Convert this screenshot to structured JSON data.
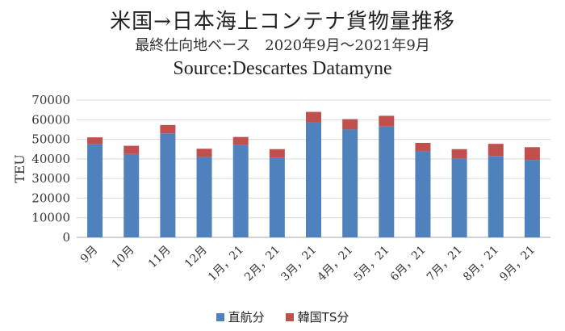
{
  "colors": {
    "direct": "#4f81bd",
    "korea_ts": "#c0504d",
    "grid": "#d9d9d9",
    "axis": "#a6a6a6"
  },
  "chart_data": {
    "type": "bar",
    "stacked": true,
    "title": "米国→日本海上コンテナ貨物量推移",
    "subtitle": "最終仕向地ベース　2020年9月～2021年9月",
    "source": "Source:Descartes Datamyne",
    "xlabel": "",
    "ylabel": "TEU",
    "ylim": [
      0,
      70000
    ],
    "yticks": [
      0,
      10000,
      20000,
      30000,
      40000,
      50000,
      60000,
      70000
    ],
    "grid": true,
    "legend_position": "bottom",
    "categories": [
      "9月",
      "10月",
      "11月",
      "12月",
      "1月，21",
      "2月，21",
      "3月，21",
      "4月，21",
      "5月，21",
      "6月，21",
      "7月，21",
      "8月，21",
      "9月，21"
    ],
    "series": [
      {
        "name": "直航分",
        "color": "#4f81bd",
        "values": [
          47500,
          42500,
          53000,
          41000,
          47000,
          40700,
          58500,
          55000,
          56500,
          43700,
          40200,
          41500,
          39500
        ]
      },
      {
        "name": "韓国TS分",
        "color": "#c0504d",
        "values": [
          3500,
          4200,
          4300,
          4200,
          4200,
          4300,
          5500,
          5300,
          5500,
          4500,
          4800,
          6200,
          6500
        ]
      }
    ]
  }
}
